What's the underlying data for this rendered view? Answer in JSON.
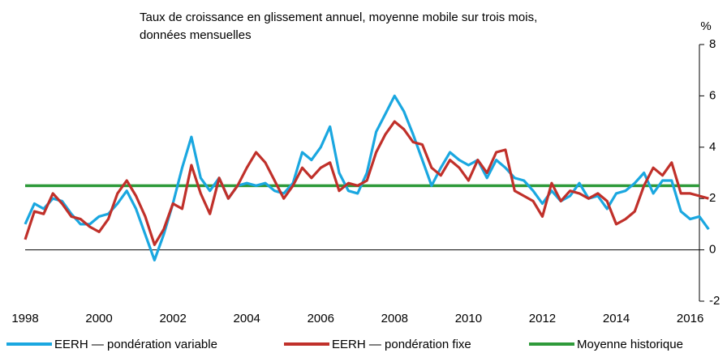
{
  "chart_data": {
    "type": "line",
    "subtitle": [
      "Taux de croissance en glissement annuel, moyenne mobile sur trois mois,",
      "données mensuelles"
    ],
    "y_unit": "%",
    "x": [
      1998,
      1998.25,
      1998.5,
      1998.75,
      1999,
      1999.25,
      1999.5,
      1999.75,
      2000,
      2000.25,
      2000.5,
      2000.75,
      2001,
      2001.25,
      2001.5,
      2001.75,
      2002,
      2002.25,
      2002.5,
      2002.75,
      2003,
      2003.25,
      2003.5,
      2003.75,
      2004,
      2004.25,
      2004.5,
      2004.75,
      2005,
      2005.25,
      2005.5,
      2005.75,
      2006,
      2006.25,
      2006.5,
      2006.75,
      2007,
      2007.25,
      2007.5,
      2007.75,
      2008,
      2008.25,
      2008.5,
      2008.75,
      2009,
      2009.25,
      2009.5,
      2009.75,
      2010,
      2010.25,
      2010.5,
      2010.75,
      2011,
      2011.25,
      2011.5,
      2011.75,
      2012,
      2012.25,
      2012.5,
      2012.75,
      2013,
      2013.25,
      2013.5,
      2013.75,
      2014,
      2014.25,
      2014.5,
      2014.75,
      2015,
      2015.25,
      2015.5,
      2015.75,
      2016,
      2016.25,
      2016.5
    ],
    "series": [
      {
        "name": "EERH — pondération variable",
        "color": "#1aa7e0",
        "values": [
          1.0,
          1.8,
          1.6,
          2.0,
          1.9,
          1.4,
          1.0,
          1.0,
          1.3,
          1.4,
          1.8,
          2.3,
          1.6,
          0.6,
          -0.4,
          0.6,
          1.8,
          3.2,
          4.4,
          2.8,
          2.3,
          2.8,
          2.0,
          2.5,
          2.6,
          2.5,
          2.6,
          2.3,
          2.2,
          2.6,
          3.8,
          3.5,
          4.0,
          4.8,
          3.0,
          2.3,
          2.2,
          3.0,
          4.6,
          5.3,
          6.0,
          5.4,
          4.5,
          3.5,
          2.5,
          3.2,
          3.8,
          3.5,
          3.3,
          3.5,
          2.8,
          3.5,
          3.2,
          2.8,
          2.7,
          2.3,
          1.8,
          2.3,
          1.9,
          2.1,
          2.6,
          2.0,
          2.1,
          1.6,
          2.2,
          2.3,
          2.6,
          3.0,
          2.2,
          2.7,
          2.7,
          1.5,
          1.2,
          1.3,
          0.8
        ]
      },
      {
        "name": "EERH — pondération fixe",
        "color": "#c0302a",
        "values": [
          0.4,
          1.5,
          1.4,
          2.2,
          1.8,
          1.3,
          1.2,
          0.9,
          0.7,
          1.2,
          2.2,
          2.7,
          2.1,
          1.3,
          0.2,
          0.8,
          1.8,
          1.6,
          3.3,
          2.2,
          1.4,
          2.8,
          2.0,
          2.5,
          3.2,
          3.8,
          3.4,
          2.7,
          2.0,
          2.5,
          3.2,
          2.8,
          3.2,
          3.4,
          2.3,
          2.6,
          2.5,
          2.7,
          3.8,
          4.5,
          5.0,
          4.7,
          4.2,
          4.1,
          3.2,
          2.9,
          3.5,
          3.2,
          2.7,
          3.5,
          3.0,
          3.8,
          3.9,
          2.3,
          2.1,
          1.9,
          1.3,
          2.6,
          1.9,
          2.3,
          2.2,
          2.0,
          2.2,
          1.9,
          1.0,
          1.2,
          1.5,
          2.5,
          3.2,
          2.9,
          3.4,
          2.2,
          2.2,
          2.1,
          2.0
        ]
      }
    ],
    "reference_line": {
      "name": "Moyenne historique",
      "color": "#2e9a3a",
      "value": 2.5
    },
    "xlim": [
      1998,
      2016.25
    ],
    "xticks": [
      1998,
      2000,
      2002,
      2004,
      2006,
      2008,
      2010,
      2012,
      2014,
      2016
    ],
    "ylim": [
      -2,
      8
    ],
    "yticks": [
      -2,
      0,
      2,
      4,
      6,
      8
    ]
  }
}
